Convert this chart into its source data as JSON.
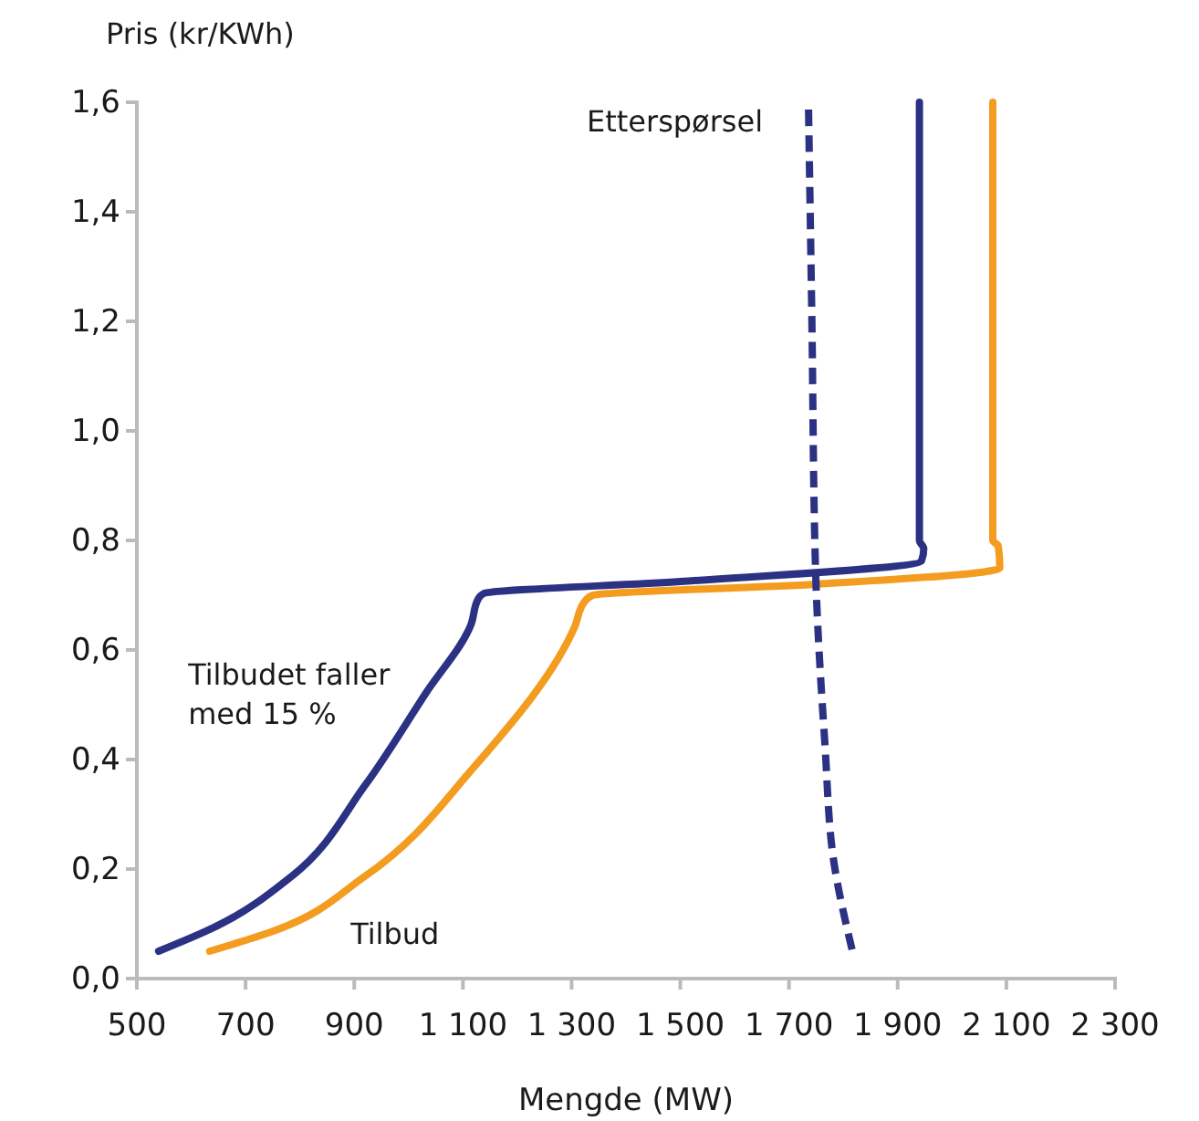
{
  "chart_data": {
    "type": "line",
    "xlabel": "Mengde (MW)",
    "ylabel": "Pris (kr/KWh)",
    "xlim": [
      500,
      2300
    ],
    "ylim": [
      0,
      1.6
    ],
    "xticks": [
      500,
      700,
      900,
      {
        "value": 1100,
        "label": "1 100"
      },
      {
        "value": 1300,
        "label": "1 300"
      },
      {
        "value": 1500,
        "label": "1 500"
      },
      {
        "value": 1700,
        "label": "1 700"
      },
      {
        "value": 1900,
        "label": "1 900"
      },
      {
        "value": 2100,
        "label": "2 100"
      },
      {
        "value": 2300,
        "label": "2 300"
      }
    ],
    "yticks": [
      {
        "value": 0,
        "label": "0,0"
      },
      {
        "value": 0.2,
        "label": "0,2"
      },
      {
        "value": 0.4,
        "label": "0,4"
      },
      {
        "value": 0.6,
        "label": "0,6"
      },
      {
        "value": 0.8,
        "label": "0,8"
      },
      {
        "value": 1.0,
        "label": "1,0"
      },
      {
        "value": 1.2,
        "label": "1,2"
      },
      {
        "value": 1.4,
        "label": "1,4"
      },
      {
        "value": 1.6,
        "label": "1,6"
      }
    ],
    "grid": false,
    "legend": false,
    "marker": "none",
    "series": [
      {
        "name": "Tilbudet faller med 15 %",
        "color": "#2b3183",
        "line_style": "solid",
        "x": [
          540,
          641,
          785,
          920,
          1031,
          1115,
          1128,
          1138,
          1500,
          1944,
          1948,
          1940,
          1940
        ],
        "values": [
          0.05,
          0.093,
          0.187,
          0.353,
          0.52,
          0.647,
          0.693,
          0.703,
          0.725,
          0.763,
          0.785,
          0.8,
          1.6
        ]
      },
      {
        "name": "Tilbud",
        "color": "#f39c1f",
        "line_style": "solid",
        "x": [
          634,
          752,
          920,
          1121,
          1306,
          1323,
          1339,
          1750,
          2088,
          2085,
          2075,
          2075
        ],
        "values": [
          0.05,
          0.087,
          0.187,
          0.387,
          0.643,
          0.687,
          0.7,
          0.72,
          0.75,
          0.79,
          0.8,
          1.6
        ]
      },
      {
        "name": "Etterspørsel",
        "color": "#2b3183",
        "line_style": "dashed",
        "x": [
          1816,
          1783,
          1766,
          1749,
          1742,
          1736
        ],
        "values": [
          0.053,
          0.21,
          0.43,
          0.743,
          1.21,
          1.587
        ]
      }
    ]
  }
}
